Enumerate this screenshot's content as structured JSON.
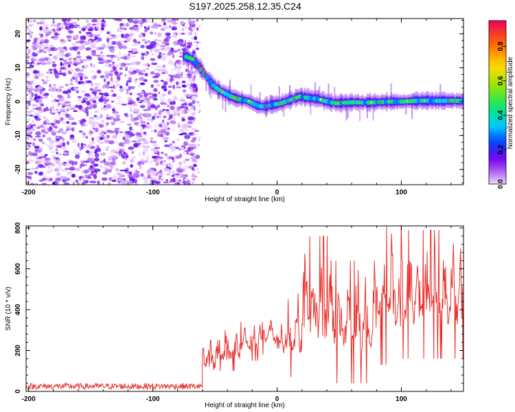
{
  "title": "S197.2025.258.12.35.C24",
  "chart_data": [
    {
      "type": "heatmap",
      "name": "spectrogram",
      "xlabel": "Height of straight line (km)",
      "ylabel": "Frequency (Hz)",
      "xlim": [
        -202,
        150
      ],
      "ylim": [
        -24.5,
        24.5
      ],
      "xticks": [
        -200,
        -100,
        0,
        100
      ],
      "yticks": [
        -20,
        -10,
        0,
        10,
        20
      ],
      "noise_region_x": [
        -202,
        -70
      ],
      "signal_track": {
        "x": [
          -75,
          -68,
          -62,
          -57,
          -52,
          -47,
          -42,
          -37,
          -32,
          -27,
          -22,
          -17,
          -12,
          -7,
          -2,
          3,
          8,
          13,
          18,
          23,
          28,
          33,
          38,
          43,
          48,
          55,
          62,
          70,
          80,
          90,
          100,
          110,
          120,
          130,
          140,
          150
        ],
        "freq_hz": [
          13.5,
          12.5,
          10,
          7.5,
          5,
          3.5,
          2.5,
          1.5,
          0.8,
          0.5,
          0,
          -1,
          -1.5,
          -1.2,
          -0.8,
          -0.5,
          0.2,
          0.8,
          1.5,
          1.2,
          1,
          0.8,
          0.2,
          -0.2,
          -0.5,
          -0.3,
          -0.2,
          -0.3,
          -0.2,
          0,
          0,
          0.2,
          0.3,
          0.2,
          0.3,
          0.2
        ]
      },
      "colorbar": {
        "label": "Normalized spectral amplitude",
        "range": [
          0,
          0.95
        ],
        "ticks": [
          "0.0",
          "0.2",
          "0.4",
          "0.6",
          "0.8"
        ]
      }
    },
    {
      "type": "line",
      "name": "snr",
      "xlabel": "Height of straight line (km)",
      "ylabel": "SNR (10 * v/v)",
      "xlim": [
        -202,
        150
      ],
      "ylim": [
        0,
        810
      ],
      "xticks": [
        -200,
        -100,
        0,
        100
      ],
      "yticks": [
        0,
        200,
        400,
        600,
        800
      ],
      "color": "#e8302a",
      "noise_floor": [
        10,
        40
      ],
      "onset_x": -58,
      "segments": [
        {
          "x0": -202,
          "x1": -60,
          "lo": 10,
          "hi": 40
        },
        {
          "x0": -60,
          "x1": -49,
          "lo": 20,
          "hi": 330
        },
        {
          "x0": -49,
          "x1": -30,
          "lo": 100,
          "hi": 300
        },
        {
          "x0": -30,
          "x1": -15,
          "lo": 150,
          "hi": 340
        },
        {
          "x0": -15,
          "x1": 0,
          "lo": 180,
          "hi": 380
        },
        {
          "x0": 0,
          "x1": 3,
          "lo": 210,
          "hi": 280
        },
        {
          "x0": 3,
          "x1": 20,
          "lo": 70,
          "hi": 480
        },
        {
          "x0": 20,
          "x1": 45,
          "lo": 90,
          "hi": 760
        },
        {
          "x0": 45,
          "x1": 80,
          "lo": 40,
          "hi": 640
        },
        {
          "x0": 80,
          "x1": 100,
          "lo": 130,
          "hi": 810
        },
        {
          "x0": 100,
          "x1": 150,
          "lo": 160,
          "hi": 790
        }
      ]
    }
  ]
}
